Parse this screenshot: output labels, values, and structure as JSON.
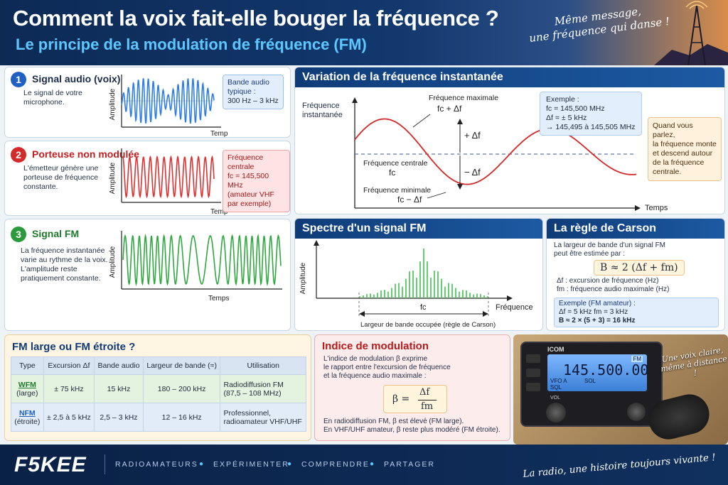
{
  "header": {
    "title": "Comment la voix fait-elle bouger la fréquence ?",
    "subtitle": "Le principe de la modulation de fréquence (FM)",
    "tagline_line1": "Même message,",
    "tagline_line2": "une fréquence qui danse !"
  },
  "audio": {
    "number": "1",
    "title": "Signal audio (voix)",
    "desc_line1": "Le signal de votre",
    "desc_line2": "microphone.",
    "axis_y": "Amplitude",
    "axis_x": "Temps",
    "callout_line1": "Bande audio",
    "callout_line2": "typique :",
    "callout_line3": "300 Hz – 3 kHz"
  },
  "carrier": {
    "number": "2",
    "title": "Porteuse non modulée",
    "desc_line1": "L'émetteur génère une",
    "desc_line2": "porteuse de fréquence",
    "desc_line3": "constante.",
    "axis_y": "Amplitude",
    "axis_x": "Temps",
    "callout_line1": "Fréquence centrale",
    "callout_line2": "fc = 145,500 MHz",
    "callout_line3": "(amateur VHF",
    "callout_line4": "par exemple)"
  },
  "fm_signal": {
    "number": "3",
    "title": "Signal FM",
    "desc_line1": "La fréquence instantanée",
    "desc_line2": "varie au rythme de la voix.",
    "desc_line3": "L'amplitude reste",
    "desc_line4": "pratiquement constante.",
    "axis_y": "Amplitude",
    "axis_x": "Temps"
  },
  "variation": {
    "title": "Variation de la fréquence instantanée",
    "axis_y_line1": "Fréquence",
    "axis_y_line2": "instantanée",
    "axis_x": "Temps",
    "max_label": "Fréquence maximale",
    "max_formula": "fc + Δf",
    "plus_df": "+ Δf",
    "minus_df": "− Δf",
    "center_label": "Fréquence centrale",
    "center_formula": "fc",
    "min_label": "Fréquence minimale",
    "min_formula": "fc − Δf",
    "example_title": "Exemple :",
    "example_line1": "fc = 145,500 MHz",
    "example_line2": "Δf = ± 5 kHz",
    "example_line3": "→ 145,495 à 145,505 MHz",
    "note_line1": "Quand vous parlez,",
    "note_line2": "la fréquence monte",
    "note_line3": "et descend autour",
    "note_line4": "de la fréquence",
    "note_line5": "centrale."
  },
  "spectrum": {
    "title": "Spectre d'un signal FM",
    "axis_y": "Amplitude",
    "axis_x": "Fréquence",
    "center": "fc",
    "bandwidth_label": "Largeur de bande occupée (règle de Carson)"
  },
  "carson": {
    "title": "La règle de Carson",
    "desc_line1": "La largeur de bande d'un signal FM",
    "desc_line2": "peut être estimée par :",
    "formula": "B ≈ 2 (Δf + fm)",
    "def1": "Δf : excursion de fréquence (Hz)",
    "def2": "fm : fréquence audio maximale (Hz)",
    "example_title": "Exemple (FM amateur) :",
    "example_line1": "Δf = 5 kHz     fm = 3 kHz",
    "example_line2": "B ≈ 2 × (5 + 3) = 16 kHz"
  },
  "comparison": {
    "title": "FM large ou FM étroite ?",
    "headers": [
      "Type",
      "Excursion Δf",
      "Bande audio",
      "Largeur de bande (≈)",
      "Utilisation"
    ],
    "rows": [
      {
        "type": "WFM",
        "type_sub": "(large)",
        "excursion": "± 75 kHz",
        "audio": "15 kHz",
        "bandwidth": "180 – 200 kHz",
        "use_line1": "Radiodiffusion FM",
        "use_line2": "(87,5 – 108 MHz)"
      },
      {
        "type": "NFM",
        "type_sub": "(étroite)",
        "excursion": "± 2,5 à 5 kHz",
        "audio": "2,5 – 3 kHz",
        "bandwidth": "12 – 16 kHz",
        "use_line1": "Professionnel,",
        "use_line2": "radioamateur VHF/UHF"
      }
    ]
  },
  "index": {
    "title": "Indice de modulation",
    "desc_line1": "L'indice de modulation β exprime",
    "desc_line2": "le rapport entre l'excursion de fréquence",
    "desc_line3": "et la fréquence audio maximale :",
    "formula_left": "β =",
    "formula_num": "Δf",
    "formula_den": "fm",
    "note_line1": "En radiodiffusion FM, β est élevé (FM large).",
    "note_line2": "En VHF/UHF amateur, β reste plus modéré (FM étroite)."
  },
  "radio": {
    "brand": "ICOM",
    "freq": "145.500.00",
    "mode": "FM",
    "vfo": "VFO A",
    "sql": "SQL",
    "sql2": "SOL",
    "vol": "VOL",
    "slogan_line1": "Une voix claire,",
    "slogan_line2": "même à distance !"
  },
  "footer": {
    "brand": "F5KEE",
    "items": [
      "RADIOAMATEURS",
      "EXPÉRIMENTER",
      "COMPRENDRE",
      "PARTAGER"
    ],
    "slogan": "La radio, une histoire toujours vivante !"
  }
}
